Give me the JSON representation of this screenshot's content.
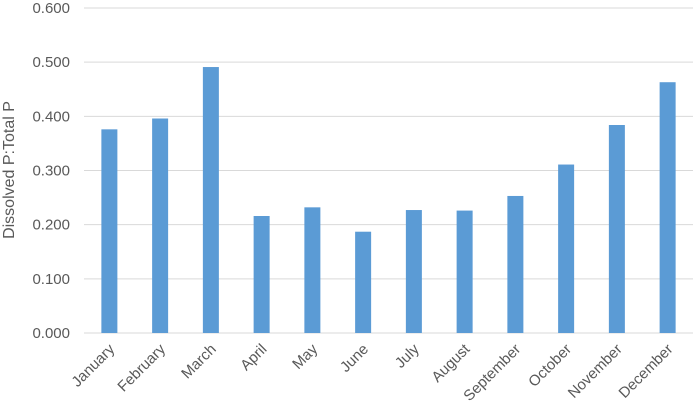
{
  "chart_data": {
    "type": "bar",
    "title": "",
    "xlabel": "",
    "ylabel": "Dissolved P:Total P",
    "categories": [
      "January",
      "February",
      "March",
      "April",
      "May",
      "June",
      "July",
      "August",
      "September",
      "October",
      "November",
      "December"
    ],
    "values": [
      0.376,
      0.396,
      0.491,
      0.216,
      0.232,
      0.187,
      0.227,
      0.226,
      0.253,
      0.311,
      0.384,
      0.463
    ],
    "ylim": [
      0,
      0.6
    ],
    "yticks": [
      "0.000",
      "0.100",
      "0.200",
      "0.300",
      "0.400",
      "0.500",
      "0.600"
    ],
    "grid": true,
    "legend": "none",
    "colors": {
      "bar": "#5B9BD5",
      "grid": "#D9D9D9",
      "text": "#595959"
    }
  }
}
